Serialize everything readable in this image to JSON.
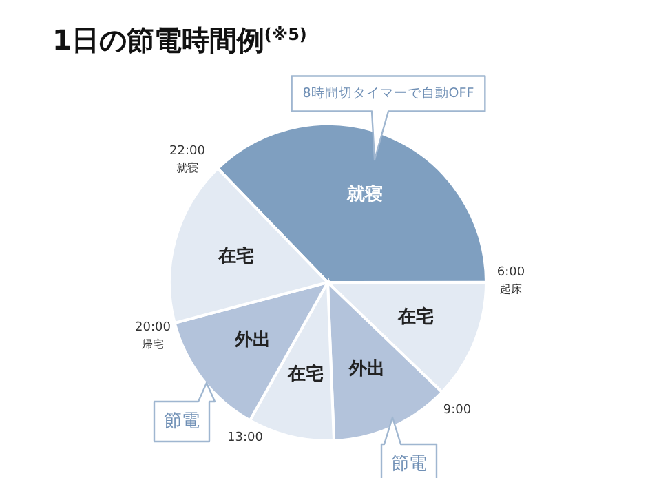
{
  "chart_data": {
    "type": "pie",
    "title": "1日の節電時間例$^{(※5)}$",
    "categories": [
      "就寝",
      "在宅",
      "外出",
      "在宅",
      "外出",
      "在宅"
    ],
    "values": [
      37.2,
      12.2,
      12.2,
      8.8,
      12.7,
      16.9
    ],
    "colors": [
      "#7f9fc0",
      "#e3eaf3",
      "#b3c3db",
      "#e3eaf3",
      "#b3c3db",
      "#e3eaf3"
    ],
    "annotations": [
      "22:00",
      "就寝",
      "6:00",
      "起床",
      "9:00",
      "13:00",
      "20:00",
      "帰宅",
      "8時間切タイマーで自動OFF",
      "節電",
      "節電"
    ]
  }
}
